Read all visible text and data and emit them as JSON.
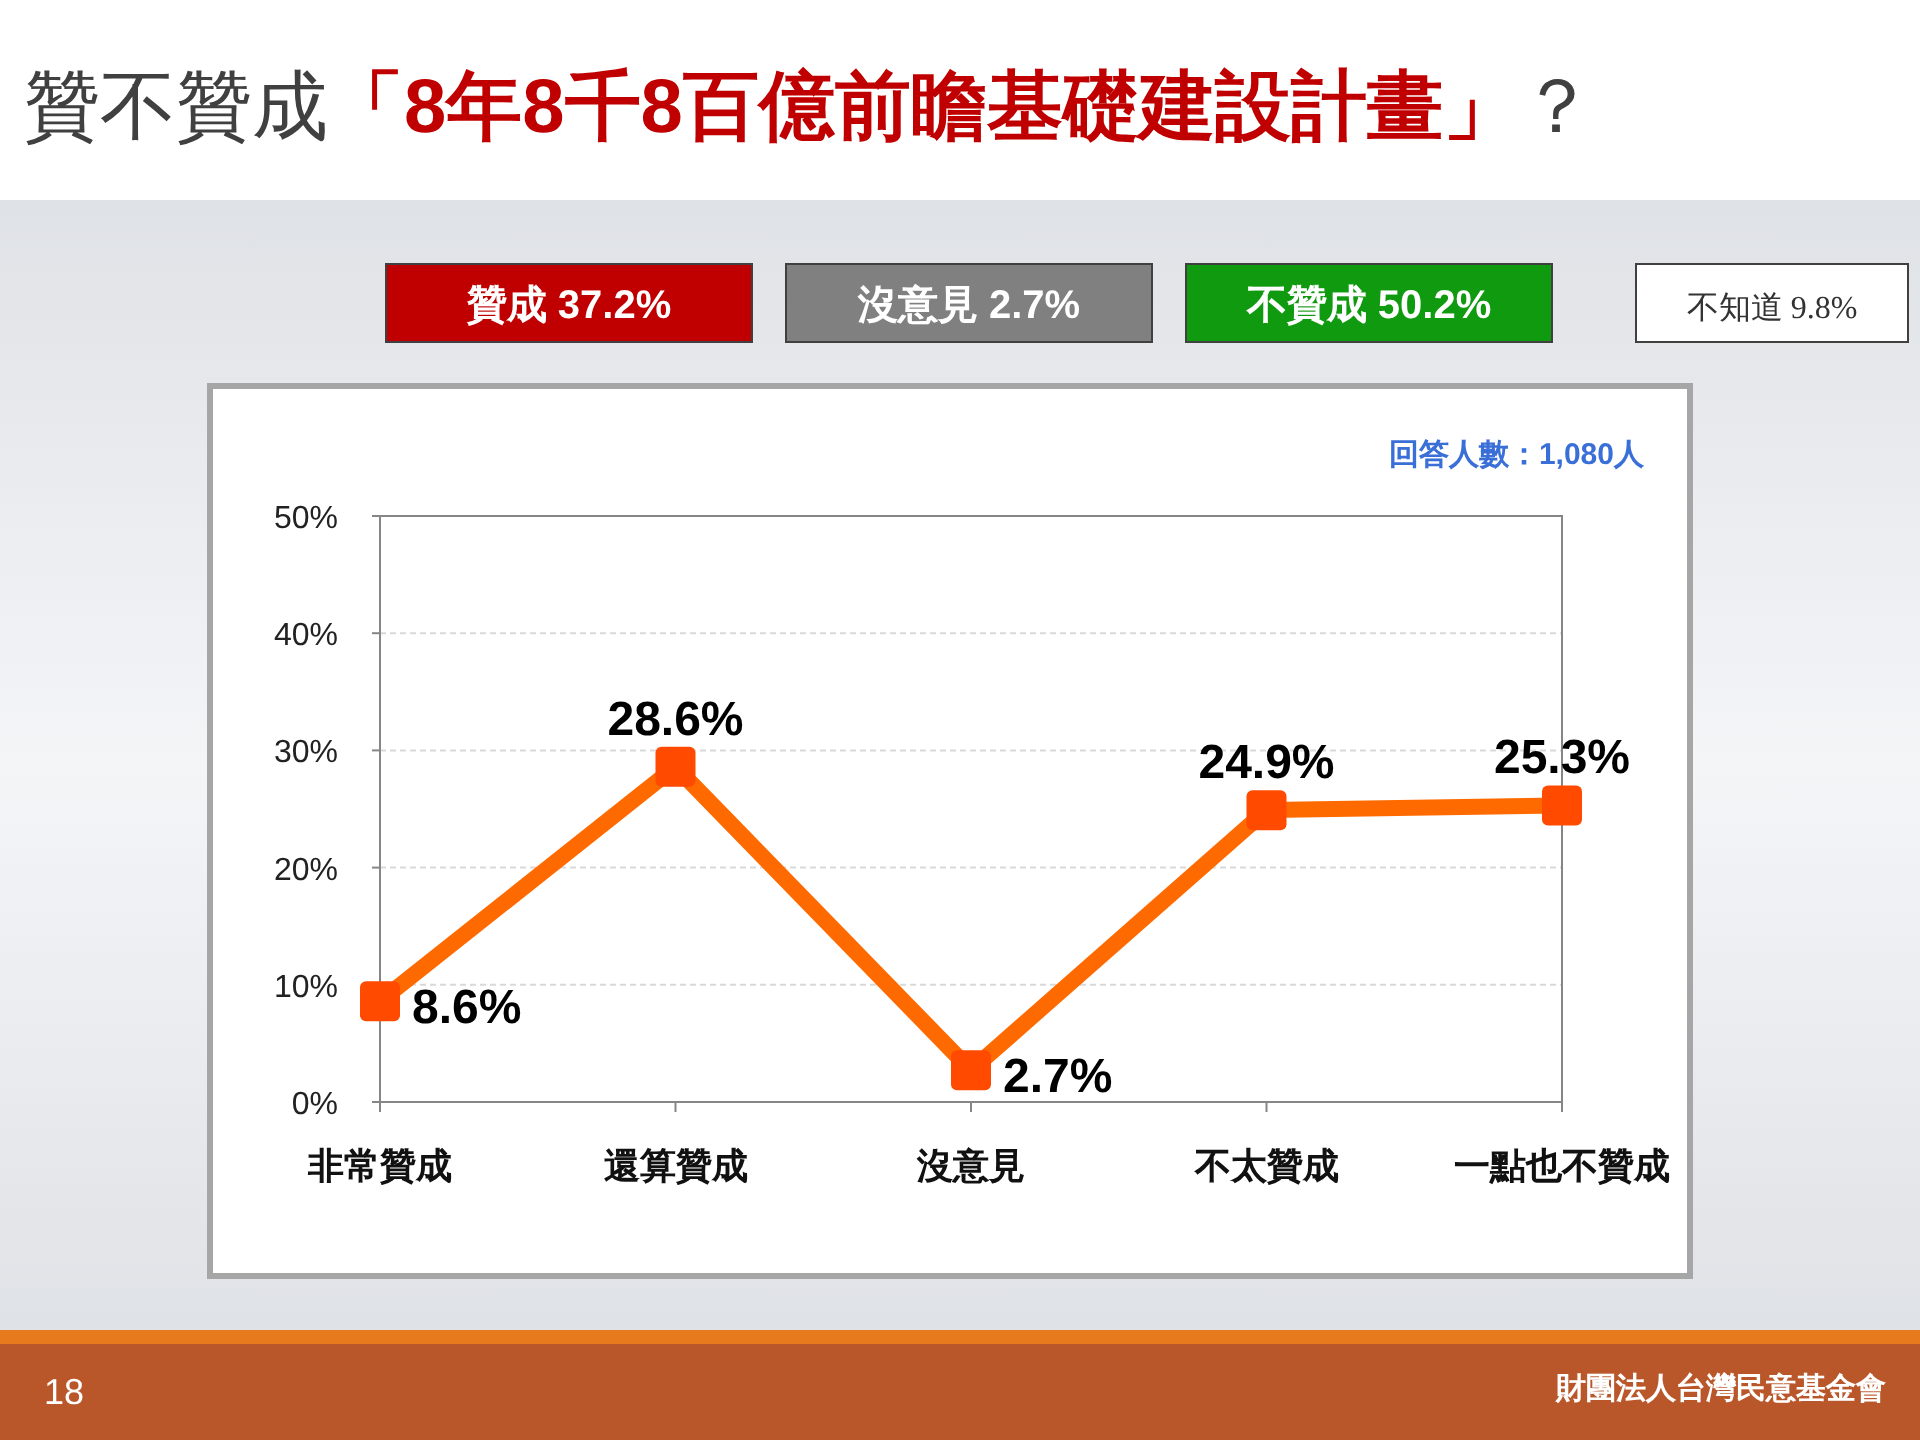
{
  "chart_data": {
    "type": "line",
    "title": "贊不贊成「8年8千8百億前瞻基礎建設計畫」？",
    "categories": [
      "非常贊成",
      "還算贊成",
      "沒意見",
      "不太贊成",
      "一點也不贊成"
    ],
    "series": [
      {
        "color": "#ff6a00",
        "values": [
          8.6,
          28.6,
          2.7,
          24.9,
          25.3
        ],
        "value_labels": [
          "8.6%",
          "28.6%",
          "2.7%",
          "24.9%",
          "25.3%"
        ]
      }
    ],
    "ylim": [
      0,
      50
    ],
    "yticks": [
      {
        "value": 0,
        "label": "0%"
      },
      {
        "value": 10,
        "label": "10%"
      },
      {
        "value": 20,
        "label": "20%"
      },
      {
        "value": 30,
        "label": "30%"
      },
      {
        "value": 40,
        "label": "40%"
      },
      {
        "value": 50,
        "label": "50%"
      }
    ],
    "grid": "y",
    "marker": "square",
    "annotations": [
      "贊成 37.2%",
      "沒意見 2.7%",
      "不贊成 50.2%",
      "不知道 9.8%",
      "回答人數：1,080人",
      "18",
      "財團法人台灣民意基金會"
    ]
  }
}
